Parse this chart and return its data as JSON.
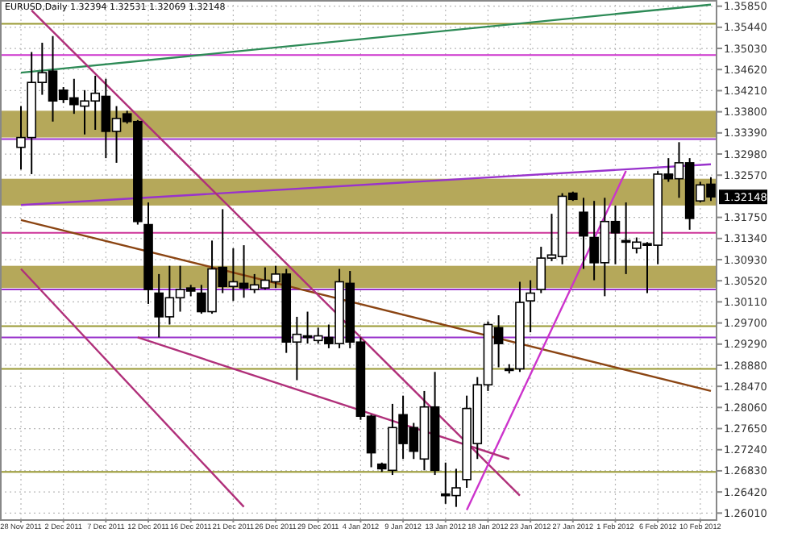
{
  "chart_data": {
    "type": "candlestick",
    "title": "EURUSD,Daily 1.32394 1.32531 1.32069 1.32148",
    "categories": [
      "28 Nov 2011",
      null,
      null,
      null,
      "2 Dec 2011",
      null,
      null,
      null,
      "7 Dec 2011",
      null,
      null,
      null,
      "12 Dec 2011",
      null,
      null,
      null,
      "16 Dec 2011",
      null,
      null,
      null,
      "21 Dec 2011",
      null,
      null,
      null,
      "26 Dec 2011",
      null,
      null,
      null,
      "29 Dec 2011",
      null,
      null,
      null,
      "4 Jan 2012",
      null,
      null,
      null,
      "9 Jan 2012",
      null,
      null,
      null,
      "13 Jan 2012",
      null,
      null,
      null,
      "18 Jan 2012",
      null,
      null,
      null,
      "23 Jan 2012",
      null,
      null,
      null,
      "27 Jan 2012",
      null,
      null,
      null,
      "1 Feb 2012",
      null,
      null,
      null,
      "6 Feb 2012",
      null,
      null,
      null,
      "10 Feb 2012",
      null
    ],
    "ohlc": [
      [
        1.3311,
        1.3391,
        1.3268,
        1.333
      ],
      [
        1.333,
        1.3496,
        1.3259,
        1.3437
      ],
      [
        1.3437,
        1.3514,
        1.3413,
        1.3456
      ],
      [
        1.3459,
        1.3527,
        1.3361,
        1.3401
      ],
      [
        1.3422,
        1.3428,
        1.3397,
        1.3404
      ],
      [
        1.3407,
        1.3444,
        1.3376,
        1.3394
      ],
      [
        1.3391,
        1.3422,
        1.3336,
        1.3401
      ],
      [
        1.3401,
        1.345,
        1.3345,
        1.3416
      ],
      [
        1.341,
        1.3444,
        1.329,
        1.3342
      ],
      [
        1.3342,
        1.3391,
        1.3281,
        1.3367
      ],
      [
        1.3376,
        1.3382,
        1.3357,
        1.3361
      ],
      [
        1.3361,
        1.3364,
        1.3161,
        1.3167
      ],
      [
        1.3161,
        1.3204,
        1.3007,
        1.3035
      ],
      [
        1.3028,
        1.3065,
        1.2942,
        1.2982
      ],
      [
        1.2982,
        1.3081,
        1.2967,
        1.3019
      ],
      [
        1.3019,
        1.3081,
        1.2992,
        1.3035
      ],
      [
        1.3038,
        1.3044,
        1.3022,
        1.3032
      ],
      [
        1.3028,
        1.3044,
        1.2988,
        1.2992
      ],
      [
        1.2992,
        1.313,
        1.2988,
        1.3075
      ],
      [
        1.3078,
        1.3191,
        1.3028,
        1.3041
      ],
      [
        1.3041,
        1.3115,
        1.3013,
        1.305
      ],
      [
        1.3047,
        1.3121,
        1.3019,
        1.3038
      ],
      [
        1.3035,
        1.3065,
        1.3028,
        1.3044
      ],
      [
        1.3038,
        1.3078,
        1.3035,
        1.3053
      ],
      [
        1.305,
        1.3081,
        1.3038,
        1.3065
      ],
      [
        1.3065,
        1.3075,
        1.2912,
        1.2933
      ],
      [
        1.2933,
        1.2982,
        1.2859,
        1.2948
      ],
      [
        1.2945,
        1.2992,
        1.293,
        1.2942
      ],
      [
        1.2936,
        1.2961,
        1.293,
        1.2945
      ],
      [
        1.2942,
        1.2967,
        1.2921,
        1.293
      ],
      [
        1.293,
        1.3075,
        1.2921,
        1.305
      ],
      [
        1.3047,
        1.3071,
        1.2921,
        1.2933
      ],
      [
        1.2933,
        1.2942,
        1.2782,
        1.2789
      ],
      [
        1.2789,
        1.2792,
        1.269,
        1.2718
      ],
      [
        1.2696,
        1.2699,
        1.2681,
        1.2687
      ],
      [
        1.2684,
        1.2813,
        1.2675,
        1.2767
      ],
      [
        1.2792,
        1.2829,
        1.2706,
        1.2736
      ],
      [
        1.2767,
        1.2776,
        1.2706,
        1.2721
      ],
      [
        1.2706,
        1.2838,
        1.2684,
        1.2807
      ],
      [
        1.2807,
        1.2875,
        1.2675,
        1.2684
      ],
      [
        1.2638,
        1.2699,
        1.2619,
        1.2635
      ],
      [
        1.2635,
        1.2687,
        1.2613,
        1.265
      ],
      [
        1.2666,
        1.2829,
        1.265,
        1.2804
      ],
      [
        1.2736,
        1.2865,
        1.2706,
        1.285
      ],
      [
        1.285,
        1.2973,
        1.2838,
        1.2967
      ],
      [
        1.2961,
        1.2985,
        1.2884,
        1.293
      ],
      [
        1.2881,
        1.289,
        1.2872,
        1.2878
      ],
      [
        1.2881,
        1.305,
        1.2875,
        1.301
      ],
      [
        1.3013,
        1.3053,
        1.2952,
        1.3028
      ],
      [
        1.3035,
        1.3118,
        1.3028,
        1.3096
      ],
      [
        1.3096,
        1.3182,
        1.309,
        1.3102
      ],
      [
        1.3099,
        1.3222,
        1.3084,
        1.3216
      ],
      [
        1.3222,
        1.3225,
        1.3207,
        1.321
      ],
      [
        1.3185,
        1.3213,
        1.3075,
        1.3139
      ],
      [
        1.3136,
        1.3207,
        1.3053,
        1.3087
      ],
      [
        1.3087,
        1.3213,
        1.3022,
        1.3167
      ],
      [
        1.3167,
        1.3198,
        1.3084,
        1.3145
      ],
      [
        1.313,
        1.3204,
        1.3065,
        1.3127
      ],
      [
        1.3115,
        1.3136,
        1.3105,
        1.3127
      ],
      [
        1.3124,
        1.3127,
        1.3028,
        1.3121
      ],
      [
        1.3121,
        1.3265,
        1.3084,
        1.3259
      ],
      [
        1.3259,
        1.329,
        1.3244,
        1.325
      ],
      [
        1.325,
        1.3321,
        1.3213,
        1.3281
      ],
      [
        1.3281,
        1.329,
        1.3151,
        1.3173
      ],
      [
        1.3207,
        1.3244,
        1.3204,
        1.3238
      ],
      [
        1.32394,
        1.32531,
        1.32069,
        1.32148
      ]
    ],
    "series": [
      {
        "type": "line",
        "color": "#2e8b57",
        "values": [
          1.3456,
          null,
          null,
          null,
          null,
          null,
          null,
          null,
          null,
          null,
          null,
          null,
          null,
          null,
          null,
          null,
          null,
          null,
          null,
          null,
          null,
          null,
          null,
          null,
          null,
          null,
          null,
          null,
          null,
          null,
          null,
          null,
          null,
          null,
          null,
          null,
          null,
          null,
          null,
          null,
          null,
          null,
          null,
          null,
          null,
          null,
          null,
          null,
          null,
          null,
          null,
          null,
          null,
          null,
          null,
          null,
          null,
          null,
          null,
          null,
          null,
          null,
          null,
          null,
          null,
          1.3588
        ]
      },
      {
        "type": "line",
        "color": "#9933cc",
        "values": [
          1.3199,
          null,
          null,
          null,
          null,
          null,
          null,
          null,
          null,
          null,
          null,
          null,
          null,
          null,
          null,
          null,
          null,
          null,
          null,
          null,
          null,
          null,
          null,
          null,
          null,
          null,
          null,
          null,
          null,
          null,
          null,
          null,
          null,
          null,
          null,
          null,
          null,
          null,
          null,
          null,
          null,
          null,
          null,
          null,
          null,
          null,
          null,
          null,
          null,
          null,
          null,
          null,
          null,
          null,
          null,
          null,
          null,
          null,
          null,
          null,
          null,
          null,
          null,
          null,
          null,
          1.3278
        ]
      },
      {
        "type": "line",
        "color": "#8b4513",
        "values": [
          1.317,
          null,
          null,
          null,
          null,
          null,
          null,
          null,
          null,
          null,
          null,
          null,
          null,
          null,
          null,
          null,
          null,
          null,
          null,
          null,
          null,
          null,
          null,
          null,
          null,
          null,
          null,
          null,
          null,
          null,
          null,
          null,
          null,
          null,
          null,
          null,
          null,
          null,
          null,
          null,
          null,
          null,
          null,
          null,
          null,
          null,
          null,
          null,
          null,
          null,
          null,
          null,
          null,
          null,
          null,
          null,
          null,
          null,
          null,
          null,
          null,
          null,
          null,
          null,
          null,
          1.2838
        ]
      },
      {
        "type": "line",
        "color": "#b0307a",
        "values": [
          null,
          1.3577,
          null,
          null,
          null,
          null,
          null,
          null,
          null,
          null,
          null,
          null,
          null,
          null,
          null,
          null,
          null,
          null,
          null,
          null,
          null,
          null,
          null,
          null,
          null,
          null,
          null,
          null,
          null,
          null,
          null,
          null,
          null,
          null,
          null,
          null,
          null,
          null,
          null,
          null,
          null,
          null,
          null,
          null,
          null,
          null,
          null,
          1.2635,
          null,
          null,
          null,
          null,
          null,
          null,
          null,
          null,
          null,
          null,
          null,
          null,
          null,
          null,
          null,
          null,
          null,
          null
        ]
      },
      {
        "type": "line",
        "color": "#b0307a",
        "values": [
          1.3075,
          null,
          null,
          null,
          null,
          null,
          null,
          null,
          null,
          null,
          null,
          null,
          null,
          null,
          null,
          null,
          null,
          null,
          null,
          null,
          null,
          1.2613,
          null,
          null,
          null,
          null,
          null,
          null,
          null,
          null,
          null,
          null,
          null,
          null,
          null,
          null,
          null,
          null,
          null,
          null,
          null,
          null,
          null,
          null,
          null,
          null,
          null,
          null,
          null,
          null,
          null,
          null,
          null,
          null,
          null,
          null,
          null,
          null,
          null,
          null,
          null,
          null,
          null,
          null,
          null,
          null
        ]
      },
      {
        "type": "line",
        "color": "#cc33cc",
        "values": [
          null,
          null,
          null,
          null,
          null,
          null,
          null,
          null,
          null,
          null,
          null,
          null,
          null,
          null,
          null,
          null,
          null,
          null,
          null,
          null,
          null,
          null,
          null,
          null,
          null,
          null,
          null,
          null,
          null,
          null,
          null,
          null,
          null,
          null,
          null,
          null,
          null,
          null,
          null,
          null,
          null,
          null,
          1.2607,
          null,
          null,
          null,
          null,
          null,
          null,
          null,
          null,
          null,
          null,
          null,
          null,
          null,
          null,
          1.3265,
          null,
          null,
          null,
          null,
          null,
          null,
          null,
          null
        ]
      },
      {
        "type": "line",
        "color": "#b0307a",
        "values": [
          null,
          null,
          null,
          null,
          null,
          null,
          null,
          null,
          null,
          null,
          null,
          1.2942,
          null,
          null,
          null,
          null,
          null,
          null,
          null,
          null,
          null,
          null,
          null,
          null,
          null,
          null,
          null,
          null,
          null,
          null,
          null,
          null,
          null,
          null,
          null,
          null,
          null,
          null,
          null,
          null,
          null,
          null,
          null,
          null,
          null,
          null,
          1.2706,
          null,
          null,
          null,
          null,
          null,
          null,
          null,
          null,
          null,
          null,
          null,
          null,
          null,
          null,
          null,
          null,
          null,
          null,
          null
        ]
      }
    ],
    "ylim": [
      1.2589,
      1.3597
    ],
    "yticks": [
      {
        "value": 1.2601,
        "label": "1.26010"
      },
      {
        "value": 1.2642,
        "label": "1.26420"
      },
      {
        "value": 1.2683,
        "label": "1.26830"
      },
      {
        "value": 1.2724,
        "label": "1.27240"
      },
      {
        "value": 1.2765,
        "label": "1.27650"
      },
      {
        "value": 1.2806,
        "label": "1.28060"
      },
      {
        "value": 1.2847,
        "label": "1.28470"
      },
      {
        "value": 1.2888,
        "label": "1.28880"
      },
      {
        "value": 1.2929,
        "label": "1.29290"
      },
      {
        "value": 1.297,
        "label": "1.29700"
      },
      {
        "value": 1.3011,
        "label": "1.30110"
      },
      {
        "value": 1.3052,
        "label": "1.30520"
      },
      {
        "value": 1.3093,
        "label": "1.30930"
      },
      {
        "value": 1.3134,
        "label": "1.31340"
      },
      {
        "value": 1.3175,
        "label": "1.31750"
      },
      {
        "value": 1.3257,
        "label": "1.32570"
      },
      {
        "value": 1.3298,
        "label": "1.32980"
      },
      {
        "value": 1.3339,
        "label": "1.33390"
      },
      {
        "value": 1.338,
        "label": "1.33800"
      },
      {
        "value": 1.3421,
        "label": "1.34210"
      },
      {
        "value": 1.3462,
        "label": "1.34620"
      },
      {
        "value": 1.3503,
        "label": "1.35030"
      },
      {
        "value": 1.3544,
        "label": "1.35440"
      },
      {
        "value": 1.3585,
        "label": "1.35850"
      }
    ],
    "grid": true,
    "bands": [
      {
        "axis": "y",
        "from": 1.3198,
        "to": 1.325,
        "color": "#b5a85a"
      },
      {
        "axis": "y",
        "from": 1.333,
        "to": 1.3382,
        "color": "#b5a85a"
      },
      {
        "axis": "y",
        "from": 1.3038,
        "to": 1.3081,
        "color": "#b5a85a"
      }
    ],
    "ref_lines": [
      {
        "axis": "y",
        "value": 1.3551,
        "color": "#999933"
      },
      {
        "axis": "y",
        "value": 1.349,
        "color": "#cc33cc"
      },
      {
        "axis": "y",
        "value": 1.3327,
        "color": "#9933cc"
      },
      {
        "axis": "y",
        "value": 1.3145,
        "color": "#cc3399"
      },
      {
        "axis": "y",
        "value": 1.3035,
        "color": "#9933cc"
      },
      {
        "axis": "y",
        "value": 1.2964,
        "color": "#999933"
      },
      {
        "axis": "y",
        "value": 1.2942,
        "color": "#9933cc"
      },
      {
        "axis": "y",
        "value": 1.2881,
        "color": "#999933"
      },
      {
        "axis": "y",
        "value": 1.2681,
        "color": "#999933"
      }
    ],
    "annotations": [
      {
        "text": "1.32148",
        "y": 1.32148
      }
    ]
  }
}
